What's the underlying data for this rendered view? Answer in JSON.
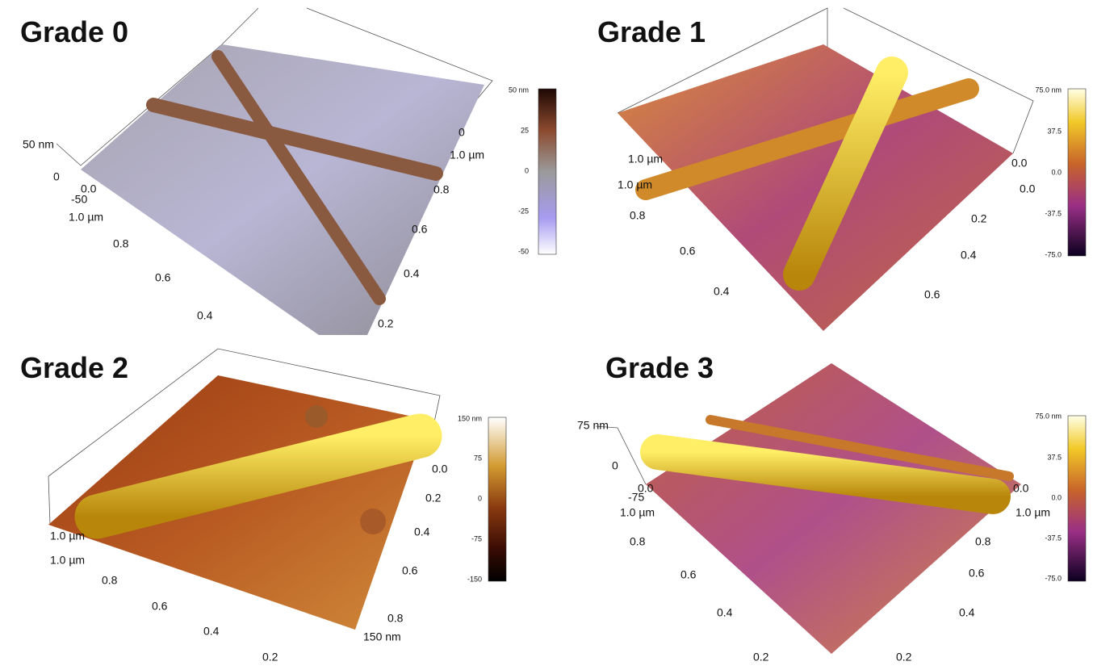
{
  "panels": [
    {
      "title": "Grade 0",
      "z_labels": [
        "50 nm",
        "0",
        "-50"
      ],
      "left_axis": [
        "0.0",
        "1.0 µm",
        "0.8",
        "0.6",
        "0.4"
      ],
      "right_axis": [
        "0",
        "1.0 µm",
        "0.8",
        "0.6",
        "0.4",
        "0.2"
      ],
      "colorbar": [
        "50 nm",
        "25",
        "0",
        "-25",
        "-50"
      ]
    },
    {
      "title": "Grade 1",
      "z_labels": [],
      "left_axis": [
        "1.0 µm",
        "1.0 µm",
        "0.8",
        "0.6",
        "0.4"
      ],
      "right_axis": [
        "0.0",
        "0.0",
        "0.2",
        "0.4",
        "0.6"
      ],
      "colorbar": [
        "75.0 nm",
        "37.5",
        "0.0",
        "-37.5",
        "-75.0"
      ]
    },
    {
      "title": "Grade 2",
      "z_labels": [],
      "left_axis": [
        "1.0 µm",
        "1.0 µm",
        "0.8",
        "0.6",
        "0.4",
        "0.2"
      ],
      "right_axis": [
        "0.0",
        "0.2",
        "0.4",
        "0.6",
        "0.8",
        "150 nm"
      ],
      "colorbar": [
        "150 nm",
        "75",
        "0",
        "-75",
        "-150"
      ]
    },
    {
      "title": "Grade 3",
      "z_labels": [
        "75 nm",
        "0",
        "-75"
      ],
      "left_axis": [
        "0.0",
        "1.0 µm",
        "0.8",
        "0.6",
        "0.4",
        "0.2"
      ],
      "right_axis": [
        "0.0",
        "1.0 µm",
        "0.8",
        "0.6",
        "0.4",
        "0.2"
      ],
      "colorbar": [
        "75.0 nm",
        "37.5",
        "0.0",
        "-37.5",
        "-75.0"
      ]
    }
  ]
}
